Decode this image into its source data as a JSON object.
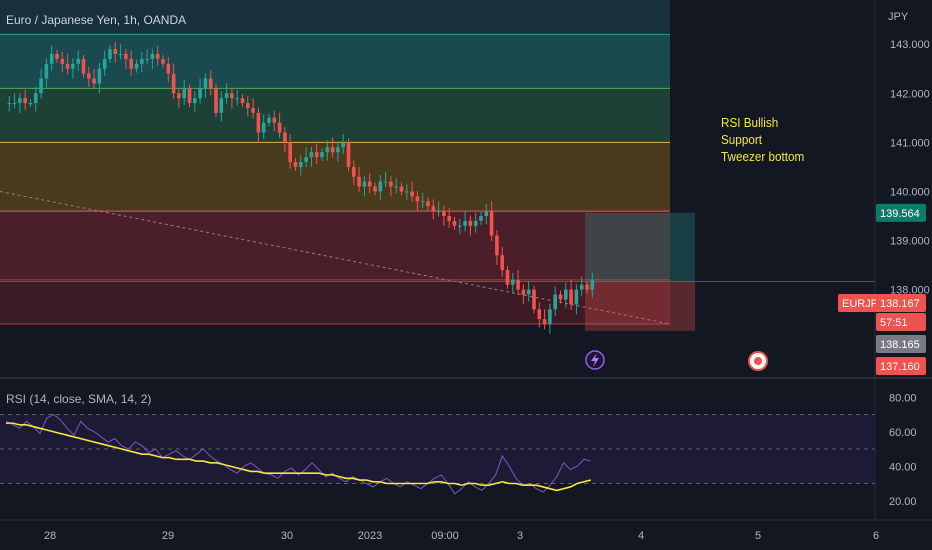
{
  "chart_data": {
    "type": "candlestick",
    "symbol_title": "Euro / Japanese Yen, 1h, OANDA",
    "currency_label": "JPY",
    "x_ticks": [
      "28",
      "29",
      "30",
      "2023",
      "09:00",
      "3",
      "4",
      "5",
      "6"
    ],
    "price_ticks": [
      "143.000",
      "142.000",
      "141.000",
      "140.000",
      "139.000",
      "138.000"
    ],
    "price_range": [
      136.2,
      143.9
    ],
    "fib_levels": [
      143.2,
      142.1,
      141.0,
      139.6,
      138.2,
      137.3
    ],
    "fib_colors": [
      "#1a4a4f",
      "#1e4137",
      "#4a3a1c",
      "#4a1f2a",
      "#3d1b25"
    ],
    "fib_line_colors": [
      "#1fa591",
      "#4caf50",
      "#e0b43a",
      "#e05a6a",
      "#b03a4a"
    ],
    "trend_line": {
      "from": [
        0,
        140.0
      ],
      "to": [
        670,
        137.3
      ]
    },
    "position": {
      "entry": 138.167,
      "target": 139.564,
      "stop": 137.16
    },
    "price_labels": {
      "target": "139.564",
      "symbol": "EURJPY",
      "current": "138.167",
      "countdown": "57:51",
      "last": "138.165",
      "stop": "137.160"
    },
    "annotations": [
      "RSI Bullish",
      "Support",
      "Tweezer bottom"
    ],
    "close_series": [
      141.8,
      141.8,
      141.8,
      141.9,
      141.8,
      141.8,
      142.0,
      142.3,
      142.6,
      142.8,
      142.7,
      142.6,
      142.5,
      142.6,
      142.7,
      142.4,
      142.3,
      142.2,
      142.5,
      142.7,
      142.9,
      142.8,
      142.8,
      142.7,
      142.5,
      142.6,
      142.7,
      142.7,
      142.8,
      142.7,
      142.6,
      142.4,
      142.0,
      141.9,
      142.1,
      141.8,
      141.9,
      142.1,
      142.3,
      142.1,
      141.6,
      141.9,
      142.0,
      141.9,
      141.9,
      141.8,
      141.7,
      141.6,
      141.2,
      141.4,
      141.5,
      141.4,
      141.2,
      141.0,
      140.6,
      140.5,
      140.6,
      140.7,
      140.8,
      140.7,
      140.8,
      140.9,
      140.8,
      140.9,
      141.0,
      140.5,
      140.3,
      140.1,
      140.2,
      140.1,
      140.0,
      140.2,
      140.2,
      140.1,
      140.1,
      140.0,
      140.0,
      139.9,
      139.8,
      139.8,
      139.7,
      139.6,
      139.6,
      139.5,
      139.4,
      139.3,
      139.3,
      139.4,
      139.3,
      139.4,
      139.5,
      139.6,
      139.1,
      138.7,
      138.4,
      138.1,
      138.2,
      138.0,
      137.9,
      138.0,
      137.6,
      137.4,
      137.3,
      137.6,
      137.9,
      137.8,
      138.0,
      137.7,
      138.0,
      138.1,
      138.0,
      138.2
    ],
    "rsi": {
      "legend": "RSI (14, close, SMA, 14, 2)",
      "y_ticks": [
        "80.00",
        "60.00",
        "40.00",
        "20.00"
      ],
      "range": [
        10,
        90
      ],
      "band": [
        70,
        30
      ],
      "rsi_values": [
        66,
        64,
        62,
        66,
        63,
        59,
        68,
        70,
        67,
        62,
        58,
        66,
        62,
        60,
        57,
        54,
        56,
        52,
        50,
        54,
        52,
        48,
        50,
        45,
        47,
        49,
        46,
        44,
        47,
        50,
        46,
        43,
        41,
        38,
        36,
        40,
        42,
        39,
        36,
        35,
        33,
        37,
        39,
        35,
        38,
        42,
        38,
        34,
        36,
        33,
        31,
        34,
        32,
        30,
        28,
        31,
        33,
        30,
        28,
        31,
        29,
        27,
        30,
        33,
        35,
        30,
        24,
        27,
        31,
        28,
        26,
        30,
        35,
        46,
        40,
        33,
        29,
        30,
        27,
        25,
        29,
        34,
        42,
        38,
        40,
        44,
        43
      ],
      "sma_values": [
        65,
        65,
        64,
        64,
        63,
        62,
        61,
        60,
        59,
        58,
        57,
        56,
        55,
        54,
        53,
        52,
        51,
        50,
        49,
        48,
        47,
        47,
        46,
        45,
        45,
        44,
        44,
        44,
        43,
        43,
        42,
        42,
        41,
        40,
        39,
        38,
        37,
        37,
        36,
        36,
        36,
        36,
        36,
        36,
        36,
        36,
        36,
        35,
        35,
        34,
        33,
        33,
        32,
        32,
        31,
        31,
        30,
        30,
        30,
        30,
        30,
        30,
        30,
        31,
        31,
        30,
        30,
        29,
        30,
        30,
        29,
        29,
        30,
        31,
        30,
        30,
        29,
        29,
        29,
        28,
        27,
        26,
        27,
        28,
        30,
        31,
        32
      ],
      "rsi_color": "#7e57c2",
      "sma_color": "#f5e642"
    },
    "up_color": "#26a69a",
    "down_color": "#ef5350"
  }
}
